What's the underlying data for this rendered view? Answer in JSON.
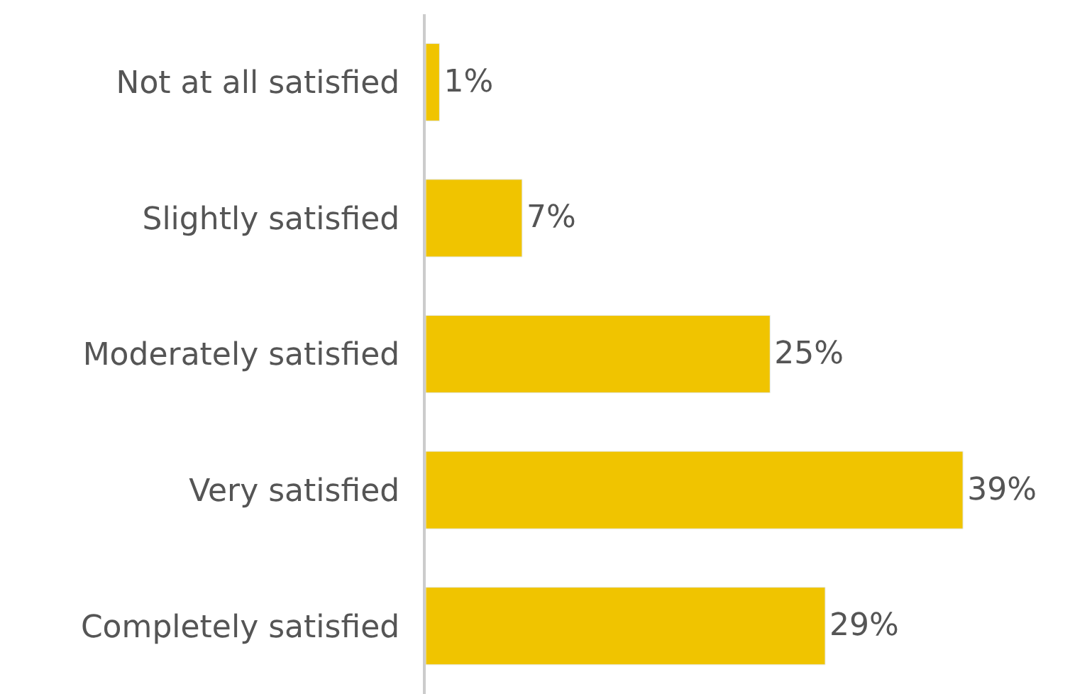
{
  "chart_data": {
    "type": "bar",
    "orientation": "horizontal",
    "categories": [
      "Not at all satisfied",
      "Slightly satisfied",
      "Moderately satisfied",
      "Very satisfied",
      "Completely satisfied"
    ],
    "values": [
      1,
      7,
      25,
      39,
      29
    ],
    "value_labels": [
      "1%",
      "7%",
      "25%",
      "39%",
      "29%"
    ],
    "color": "#f0c400",
    "legend": false
  }
}
